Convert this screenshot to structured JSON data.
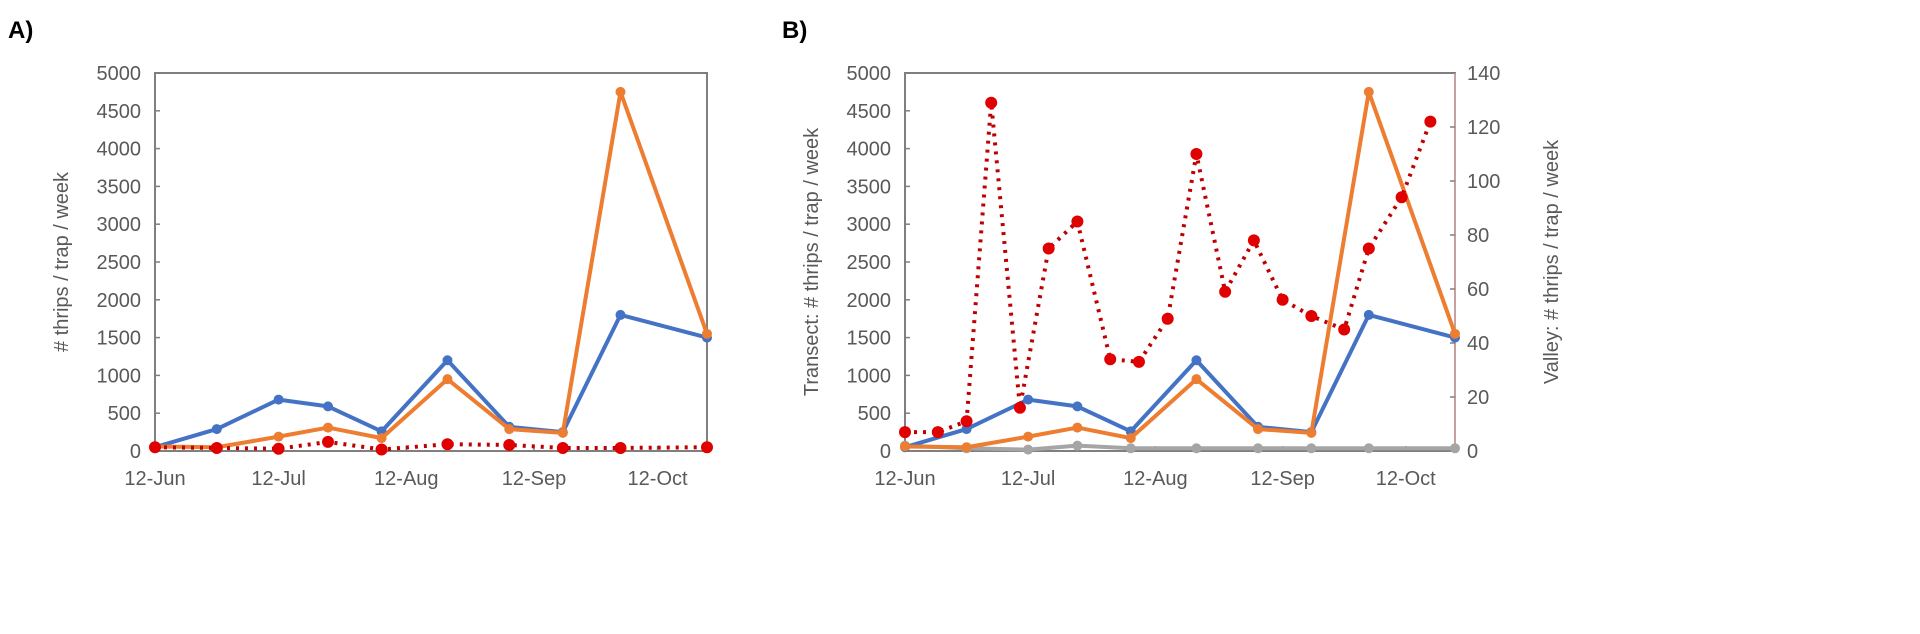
{
  "chart_data": [
    {
      "panel_label": "A)",
      "type": "line",
      "xlabel": "",
      "ylabel": "# thrips / trap / week",
      "ylim": [
        0,
        5000
      ],
      "yticks": [
        "0",
        "500",
        "1000",
        "1500",
        "2000",
        "2500",
        "3000",
        "3500",
        "4000",
        "4500",
        "5000"
      ],
      "xticks": [
        "12-Jun",
        "12-Jul",
        "12-Aug",
        "12-Sep",
        "12-Oct"
      ],
      "xlim": [
        "12-Jun",
        "24-Oct"
      ],
      "grid": false,
      "series": [
        {
          "color": "#4472C4",
          "style": "solid",
          "axis": "left",
          "x": [
            "12-Jun",
            "27-Jun",
            "12-Jul",
            "24-Jul",
            "6-Aug",
            "22-Aug",
            "6-Sep",
            "19-Sep",
            "3-Oct",
            "24-Oct"
          ],
          "y": [
            50,
            290,
            680,
            590,
            260,
            1200,
            320,
            250,
            1800,
            1500
          ]
        },
        {
          "color": "#ED7D31",
          "style": "solid",
          "axis": "left",
          "x": [
            "12-Jun",
            "27-Jun",
            "12-Jul",
            "24-Jul",
            "6-Aug",
            "22-Aug",
            "6-Sep",
            "19-Sep",
            "3-Oct",
            "24-Oct"
          ],
          "y": [
            60,
            50,
            190,
            310,
            170,
            950,
            290,
            240,
            4750,
            1550
          ]
        },
        {
          "color": "#C00000",
          "style": "dotted",
          "axis": "left",
          "x": [
            "12-Jun",
            "27-Jun",
            "12-Jul",
            "24-Jul",
            "6-Aug",
            "22-Aug",
            "6-Sep",
            "19-Sep",
            "3-Oct",
            "24-Oct"
          ],
          "y": [
            50,
            40,
            30,
            120,
            20,
            90,
            80,
            40,
            40,
            50
          ]
        }
      ]
    },
    {
      "panel_label": "B)",
      "type": "line",
      "xlabel": "",
      "ylabel": "Transect: # thrips / trap / week",
      "ylabel_right": "Valley: # thrips / trap / week",
      "ylim": [
        0,
        5000
      ],
      "ylim_right": [
        0,
        140
      ],
      "yticks": [
        "0",
        "500",
        "1000",
        "1500",
        "2000",
        "2500",
        "3000",
        "3500",
        "4000",
        "4500",
        "5000"
      ],
      "yticks_right": [
        "0",
        "20",
        "40",
        "60",
        "80",
        "100",
        "120",
        "140"
      ],
      "xticks": [
        "12-Jun",
        "12-Jul",
        "12-Aug",
        "12-Sep",
        "12-Oct"
      ],
      "xlim": [
        "12-Jun",
        "24-Oct"
      ],
      "grid": false,
      "series": [
        {
          "color": "#A5A5A5",
          "style": "solid",
          "axis": "right",
          "x": [
            "12-Jun",
            "27-Jun",
            "12-Jul",
            "24-Jul",
            "6-Aug",
            "22-Aug",
            "6-Sep",
            "19-Sep",
            "3-Oct",
            "24-Oct"
          ],
          "y": [
            2,
            1,
            0.5,
            2,
            1,
            1,
            1,
            1,
            1,
            1
          ]
        },
        {
          "color": "#4472C4",
          "style": "solid",
          "axis": "left",
          "x": [
            "12-Jun",
            "27-Jun",
            "12-Jul",
            "24-Jul",
            "6-Aug",
            "22-Aug",
            "6-Sep",
            "19-Sep",
            "3-Oct",
            "24-Oct"
          ],
          "y": [
            50,
            290,
            680,
            590,
            260,
            1200,
            320,
            250,
            1800,
            1500
          ]
        },
        {
          "color": "#ED7D31",
          "style": "solid",
          "axis": "left",
          "x": [
            "12-Jun",
            "27-Jun",
            "12-Jul",
            "24-Jul",
            "6-Aug",
            "22-Aug",
            "6-Sep",
            "19-Sep",
            "3-Oct",
            "24-Oct"
          ],
          "y": [
            60,
            50,
            190,
            310,
            170,
            950,
            290,
            240,
            4750,
            1550
          ]
        },
        {
          "color": "#C00000",
          "style": "dotted",
          "axis": "right",
          "x": [
            "12-Jun",
            "20-Jun",
            "27-Jun",
            "3-Jul",
            "10-Jul",
            "17-Jul",
            "24-Jul",
            "1-Aug",
            "8-Aug",
            "15-Aug",
            "22-Aug",
            "29-Aug",
            "5-Sep",
            "12-Sep",
            "19-Sep",
            "27-Sep",
            "3-Oct",
            "11-Oct",
            "18-Oct"
          ],
          "y": [
            7,
            7,
            11,
            129,
            16,
            75,
            85,
            34,
            33,
            49,
            110,
            59,
            78,
            56,
            50,
            45,
            75,
            94,
            122
          ]
        }
      ]
    }
  ]
}
